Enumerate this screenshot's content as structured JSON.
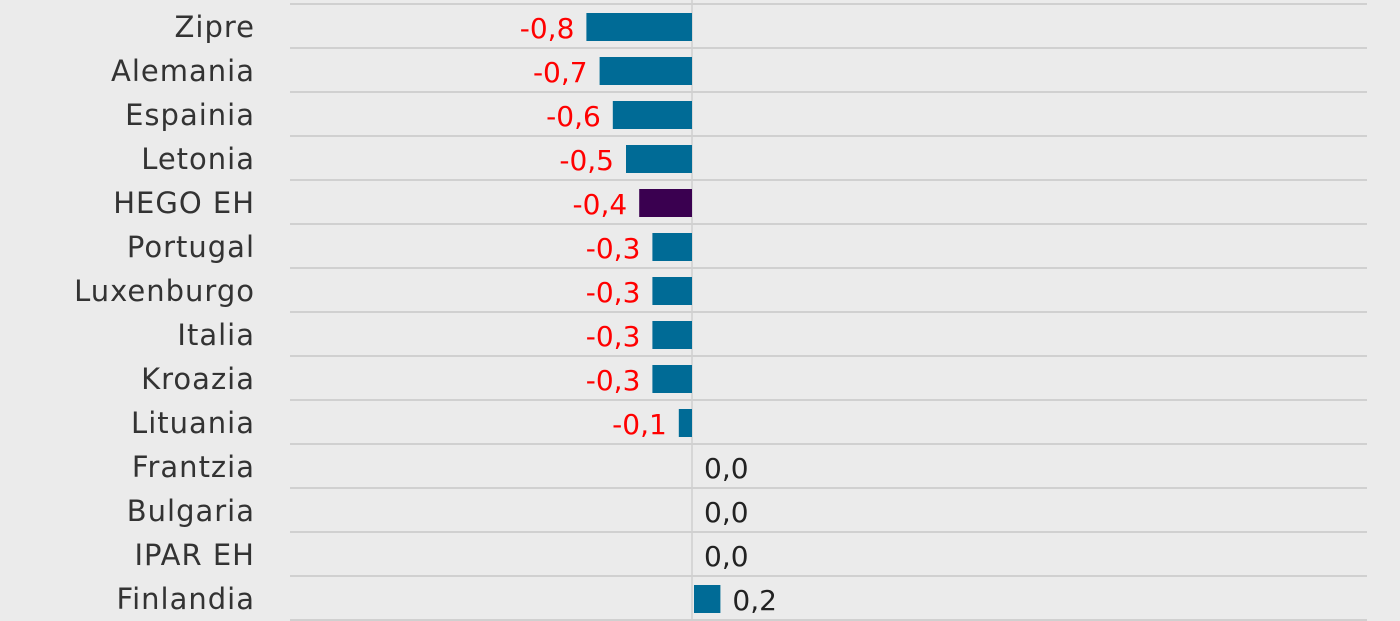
{
  "chart_data": {
    "type": "bar",
    "orientation": "horizontal",
    "categories": [
      "Zipre",
      "Alemania",
      "Espainia",
      "Letonia",
      "HEGO EH",
      "Portugal",
      "Luxenburgo",
      "Italia",
      "Kroazia",
      "Lituania",
      "Frantzia",
      "Bulgaria",
      "IPAR EH",
      "Finlandia"
    ],
    "values": [
      -0.8,
      -0.7,
      -0.6,
      -0.5,
      -0.4,
      -0.3,
      -0.3,
      -0.3,
      -0.3,
      -0.1,
      0.0,
      0.0,
      0.0,
      0.2
    ],
    "value_labels": [
      "-0,8",
      "-0,7",
      "-0,6",
      "-0,5",
      "-0,4",
      "-0,3",
      "-0,3",
      "-0,3",
      "-0,3",
      "-0,1",
      "0,0",
      "0,0",
      "0,0",
      "0,2"
    ],
    "highlight_category": "HEGO EH",
    "colors": {
      "bar": "#006b96",
      "highlight_bar": "#3a0050",
      "negative_label": "#ff0000",
      "positive_label": "#222222",
      "grid": "#c8c8c8",
      "category_label": "#333333"
    },
    "grid": true,
    "legend": "none"
  }
}
